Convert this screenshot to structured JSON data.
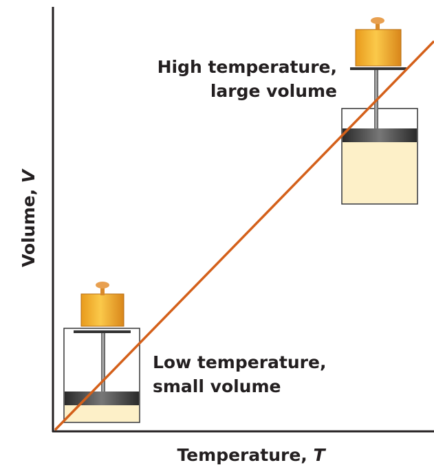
{
  "diagram": {
    "y_axis_label": {
      "text": "Volume, ",
      "variable": "V"
    },
    "x_axis_label": {
      "text": "Temperature, ",
      "variable": "T"
    },
    "annotations": [
      {
        "lines": [
          "High temperature,",
          "large volume"
        ]
      },
      {
        "lines": [
          "Low temperature,",
          "small volume"
        ]
      }
    ]
  }
}
